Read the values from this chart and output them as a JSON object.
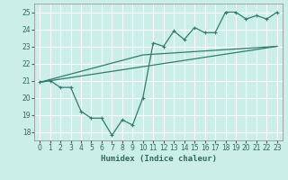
{
  "xlabel": "Humidex (Indice chaleur)",
  "line_color": "#2e7d6e",
  "bg_color": "#cceee8",
  "grid_color": "#b0ddd8",
  "xlim": [
    -0.5,
    23.5
  ],
  "ylim": [
    17.5,
    25.5
  ],
  "xticks": [
    0,
    1,
    2,
    3,
    4,
    5,
    6,
    7,
    8,
    9,
    10,
    11,
    12,
    13,
    14,
    15,
    16,
    17,
    18,
    19,
    20,
    21,
    22,
    23
  ],
  "yticks": [
    18,
    19,
    20,
    21,
    22,
    23,
    24,
    25
  ],
  "line1_x": [
    0,
    1,
    2,
    3,
    4,
    5,
    6,
    7,
    8,
    9,
    10,
    11,
    12,
    13,
    14,
    15,
    16,
    17,
    18,
    19,
    20,
    21,
    22,
    23
  ],
  "line1_y": [
    20.9,
    21.0,
    20.6,
    20.6,
    19.2,
    18.8,
    18.8,
    17.8,
    18.7,
    18.4,
    20.0,
    23.2,
    23.0,
    23.9,
    23.4,
    24.1,
    23.8,
    23.8,
    25.0,
    25.0,
    24.6,
    24.8,
    24.6,
    25.0
  ],
  "line2_x": [
    0,
    23
  ],
  "line2_y": [
    20.9,
    23.0
  ],
  "line3_x": [
    0,
    10,
    23
  ],
  "line3_y": [
    20.9,
    22.5,
    23.0
  ]
}
